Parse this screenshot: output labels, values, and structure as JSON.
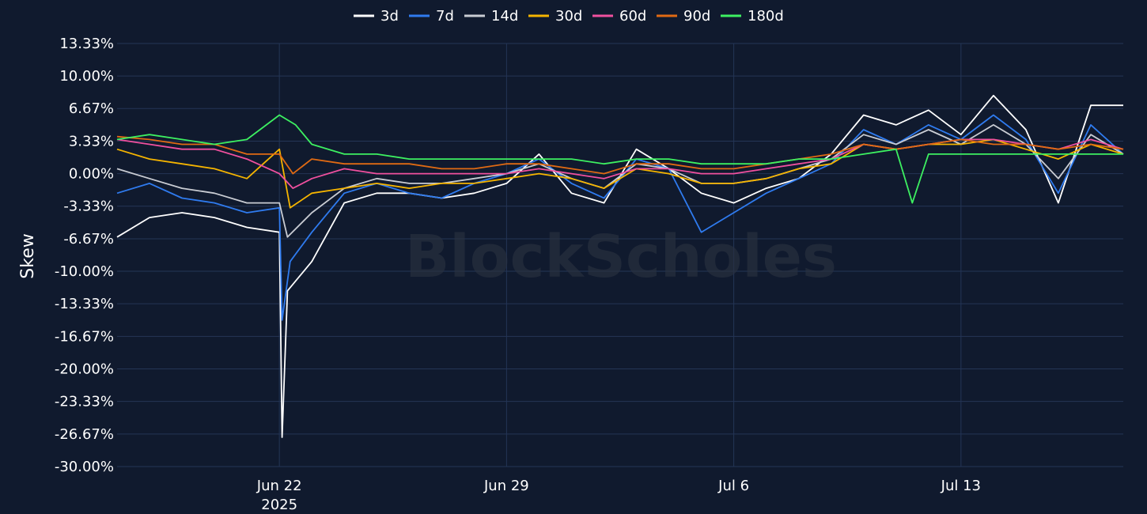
{
  "watermark": "BlockScholes",
  "chart_data": {
    "type": "line",
    "title": "",
    "xlabel": "",
    "ylabel": "Skew",
    "ylim": [
      -30,
      13.33
    ],
    "yticks": [
      13.33,
      10,
      6.67,
      3.33,
      0,
      -3.33,
      -6.67,
      -10,
      -13.33,
      -16.67,
      -20,
      -23.33,
      -26.67,
      -30
    ],
    "ytick_labels": [
      "13.33%",
      "10.00%",
      "6.67%",
      "3.33%",
      "0.00%",
      "-3.33%",
      "-6.67%",
      "-10.00%",
      "-13.33%",
      "-16.67%",
      "-20.00%",
      "-23.33%",
      "-26.67%",
      "-30.00%"
    ],
    "xlim": [
      "2025-06-17",
      "2025-07-18"
    ],
    "xticks": [
      {
        "date": "2025-06-22",
        "label": "Jun 22",
        "sublabel": "2025"
      },
      {
        "date": "2025-06-29",
        "label": "Jun 29",
        "sublabel": ""
      },
      {
        "date": "2025-07-06",
        "label": "Jul 6",
        "sublabel": ""
      },
      {
        "date": "2025-07-13",
        "label": "Jul 13",
        "sublabel": ""
      }
    ],
    "grid": true,
    "legend_position": "top-center",
    "series": [
      {
        "name": "3d",
        "color": "#ffffff",
        "points": [
          [
            "2025-06-17",
            -6.5
          ],
          [
            "2025-06-18",
            -4.5
          ],
          [
            "2025-06-19",
            -4.0
          ],
          [
            "2025-06-20",
            -4.5
          ],
          [
            "2025-06-21",
            -5.5
          ],
          [
            "2025-06-22",
            -6.0
          ],
          [
            "2025-06-22 02:00",
            -27.0
          ],
          [
            "2025-06-22 06:00",
            -12.0
          ],
          [
            "2025-06-23",
            -9.0
          ],
          [
            "2025-06-24",
            -3.0
          ],
          [
            "2025-06-25",
            -2.0
          ],
          [
            "2025-06-26",
            -2.0
          ],
          [
            "2025-06-27",
            -2.5
          ],
          [
            "2025-06-28",
            -2.0
          ],
          [
            "2025-06-29",
            -1.0
          ],
          [
            "2025-06-30",
            2.0
          ],
          [
            "2025-07-01",
            -2.0
          ],
          [
            "2025-07-02",
            -3.0
          ],
          [
            "2025-07-03",
            2.5
          ],
          [
            "2025-07-04",
            0.5
          ],
          [
            "2025-07-05",
            -2.0
          ],
          [
            "2025-07-06",
            -3.0
          ],
          [
            "2025-07-07",
            -1.5
          ],
          [
            "2025-07-08",
            -0.5
          ],
          [
            "2025-07-09",
            2.0
          ],
          [
            "2025-07-10",
            6.0
          ],
          [
            "2025-07-11",
            5.0
          ],
          [
            "2025-07-12",
            6.5
          ],
          [
            "2025-07-13",
            4.0
          ],
          [
            "2025-07-14",
            8.0
          ],
          [
            "2025-07-15",
            4.5
          ],
          [
            "2025-07-16",
            -3.0
          ],
          [
            "2025-07-17",
            7.0
          ],
          [
            "2025-07-18",
            7.0
          ]
        ]
      },
      {
        "name": "7d",
        "color": "#2f7bef",
        "points": [
          [
            "2025-06-17",
            -2.0
          ],
          [
            "2025-06-18",
            -1.0
          ],
          [
            "2025-06-19",
            -2.5
          ],
          [
            "2025-06-20",
            -3.0
          ],
          [
            "2025-06-21",
            -4.0
          ],
          [
            "2025-06-22",
            -3.5
          ],
          [
            "2025-06-22 02:00",
            -15.0
          ],
          [
            "2025-06-22 08:00",
            -9.0
          ],
          [
            "2025-06-23",
            -6.0
          ],
          [
            "2025-06-24",
            -2.0
          ],
          [
            "2025-06-25",
            -1.0
          ],
          [
            "2025-06-26",
            -2.0
          ],
          [
            "2025-06-27",
            -2.5
          ],
          [
            "2025-06-28",
            -1.0
          ],
          [
            "2025-06-29",
            0.0
          ],
          [
            "2025-06-30",
            1.5
          ],
          [
            "2025-07-01",
            -1.0
          ],
          [
            "2025-07-02",
            -2.5
          ],
          [
            "2025-07-03",
            1.5
          ],
          [
            "2025-07-04",
            0.5
          ],
          [
            "2025-07-05",
            -6.0
          ],
          [
            "2025-07-06",
            -4.0
          ],
          [
            "2025-07-07",
            -2.0
          ],
          [
            "2025-07-08",
            -0.5
          ],
          [
            "2025-07-09",
            1.0
          ],
          [
            "2025-07-10",
            4.5
          ],
          [
            "2025-07-11",
            3.0
          ],
          [
            "2025-07-12",
            5.0
          ],
          [
            "2025-07-13",
            3.5
          ],
          [
            "2025-07-14",
            6.0
          ],
          [
            "2025-07-15",
            3.5
          ],
          [
            "2025-07-16",
            -2.0
          ],
          [
            "2025-07-17",
            5.0
          ],
          [
            "2025-07-18",
            2.0
          ]
        ]
      },
      {
        "name": "14d",
        "color": "#c9ccd3",
        "points": [
          [
            "2025-06-17",
            0.5
          ],
          [
            "2025-06-18",
            -0.5
          ],
          [
            "2025-06-19",
            -1.5
          ],
          [
            "2025-06-20",
            -2.0
          ],
          [
            "2025-06-21",
            -3.0
          ],
          [
            "2025-06-22",
            -3.0
          ],
          [
            "2025-06-22 06:00",
            -6.5
          ],
          [
            "2025-06-23",
            -4.0
          ],
          [
            "2025-06-24",
            -1.5
          ],
          [
            "2025-06-25",
            -0.5
          ],
          [
            "2025-06-26",
            -1.0
          ],
          [
            "2025-06-27",
            -1.0
          ],
          [
            "2025-06-28",
            -0.5
          ],
          [
            "2025-06-29",
            0.0
          ],
          [
            "2025-06-30",
            1.0
          ],
          [
            "2025-07-01",
            -0.5
          ],
          [
            "2025-07-02",
            -1.5
          ],
          [
            "2025-07-03",
            1.0
          ],
          [
            "2025-07-04",
            0.5
          ],
          [
            "2025-07-05",
            -1.0
          ],
          [
            "2025-07-06",
            -1.0
          ],
          [
            "2025-07-07",
            -0.5
          ],
          [
            "2025-07-08",
            0.5
          ],
          [
            "2025-07-09",
            1.5
          ],
          [
            "2025-07-10",
            4.0
          ],
          [
            "2025-07-11",
            3.0
          ],
          [
            "2025-07-12",
            4.5
          ],
          [
            "2025-07-13",
            3.0
          ],
          [
            "2025-07-14",
            5.0
          ],
          [
            "2025-07-15",
            3.0
          ],
          [
            "2025-07-16",
            -0.5
          ],
          [
            "2025-07-17",
            4.0
          ],
          [
            "2025-07-18",
            2.0
          ]
        ]
      },
      {
        "name": "30d",
        "color": "#f5b400",
        "points": [
          [
            "2025-06-17",
            2.5
          ],
          [
            "2025-06-18",
            1.5
          ],
          [
            "2025-06-19",
            1.0
          ],
          [
            "2025-06-20",
            0.5
          ],
          [
            "2025-06-21",
            -0.5
          ],
          [
            "2025-06-22",
            2.5
          ],
          [
            "2025-06-22 08:00",
            -3.5
          ],
          [
            "2025-06-23",
            -2.0
          ],
          [
            "2025-06-24",
            -1.5
          ],
          [
            "2025-06-25",
            -1.0
          ],
          [
            "2025-06-26",
            -1.5
          ],
          [
            "2025-06-27",
            -1.0
          ],
          [
            "2025-06-28",
            -1.0
          ],
          [
            "2025-06-29",
            -0.5
          ],
          [
            "2025-06-30",
            0.0
          ],
          [
            "2025-07-01",
            -0.5
          ],
          [
            "2025-07-02",
            -1.5
          ],
          [
            "2025-07-03",
            0.5
          ],
          [
            "2025-07-04",
            0.0
          ],
          [
            "2025-07-05",
            -1.0
          ],
          [
            "2025-07-06",
            -1.0
          ],
          [
            "2025-07-07",
            -0.5
          ],
          [
            "2025-07-08",
            0.5
          ],
          [
            "2025-07-09",
            1.0
          ],
          [
            "2025-07-10",
            3.0
          ],
          [
            "2025-07-11",
            2.5
          ],
          [
            "2025-07-12",
            3.0
          ],
          [
            "2025-07-13",
            3.0
          ],
          [
            "2025-07-14",
            3.5
          ],
          [
            "2025-07-15",
            2.5
          ],
          [
            "2025-07-16",
            1.5
          ],
          [
            "2025-07-17",
            3.0
          ],
          [
            "2025-07-18",
            2.0
          ]
        ]
      },
      {
        "name": "60d",
        "color": "#f0509f",
        "points": [
          [
            "2025-06-17",
            3.5
          ],
          [
            "2025-06-18",
            3.0
          ],
          [
            "2025-06-19",
            2.5
          ],
          [
            "2025-06-20",
            2.5
          ],
          [
            "2025-06-21",
            1.5
          ],
          [
            "2025-06-22",
            0.0
          ],
          [
            "2025-06-22 10:00",
            -1.5
          ],
          [
            "2025-06-23",
            -0.5
          ],
          [
            "2025-06-24",
            0.5
          ],
          [
            "2025-06-25",
            0.0
          ],
          [
            "2025-06-26",
            0.0
          ],
          [
            "2025-06-27",
            0.0
          ],
          [
            "2025-06-28",
            0.0
          ],
          [
            "2025-06-29",
            0.0
          ],
          [
            "2025-06-30",
            0.5
          ],
          [
            "2025-07-01",
            0.0
          ],
          [
            "2025-07-02",
            -0.5
          ],
          [
            "2025-07-03",
            0.5
          ],
          [
            "2025-07-04",
            0.5
          ],
          [
            "2025-07-05",
            0.0
          ],
          [
            "2025-07-06",
            0.0
          ],
          [
            "2025-07-07",
            0.5
          ],
          [
            "2025-07-08",
            1.0
          ],
          [
            "2025-07-09",
            1.5
          ],
          [
            "2025-07-10",
            3.0
          ],
          [
            "2025-07-11",
            2.5
          ],
          [
            "2025-07-12",
            3.0
          ],
          [
            "2025-07-13",
            3.5
          ],
          [
            "2025-07-14",
            3.5
          ],
          [
            "2025-07-15",
            3.0
          ],
          [
            "2025-07-16",
            2.5
          ],
          [
            "2025-07-17",
            3.5
          ],
          [
            "2025-07-18",
            2.5
          ]
        ]
      },
      {
        "name": "90d",
        "color": "#e06a13",
        "points": [
          [
            "2025-06-17",
            3.8
          ],
          [
            "2025-06-18",
            3.5
          ],
          [
            "2025-06-19",
            3.0
          ],
          [
            "2025-06-20",
            3.0
          ],
          [
            "2025-06-21",
            2.0
          ],
          [
            "2025-06-22",
            2.0
          ],
          [
            "2025-06-22 10:00",
            0.0
          ],
          [
            "2025-06-23",
            1.5
          ],
          [
            "2025-06-24",
            1.0
          ],
          [
            "2025-06-25",
            1.0
          ],
          [
            "2025-06-26",
            1.0
          ],
          [
            "2025-06-27",
            0.5
          ],
          [
            "2025-06-28",
            0.5
          ],
          [
            "2025-06-29",
            1.0
          ],
          [
            "2025-06-30",
            1.0
          ],
          [
            "2025-07-01",
            0.5
          ],
          [
            "2025-07-02",
            0.0
          ],
          [
            "2025-07-03",
            1.0
          ],
          [
            "2025-07-04",
            1.0
          ],
          [
            "2025-07-05",
            0.5
          ],
          [
            "2025-07-06",
            0.5
          ],
          [
            "2025-07-07",
            1.0
          ],
          [
            "2025-07-08",
            1.5
          ],
          [
            "2025-07-09",
            2.0
          ],
          [
            "2025-07-10",
            3.0
          ],
          [
            "2025-07-11",
            2.5
          ],
          [
            "2025-07-12",
            3.0
          ],
          [
            "2025-07-13",
            3.5
          ],
          [
            "2025-07-14",
            3.0
          ],
          [
            "2025-07-15",
            3.0
          ],
          [
            "2025-07-16",
            2.5
          ],
          [
            "2025-07-17",
            3.0
          ],
          [
            "2025-07-18",
            2.5
          ]
        ]
      },
      {
        "name": "180d",
        "color": "#3df061",
        "points": [
          [
            "2025-06-17",
            3.5
          ],
          [
            "2025-06-18",
            4.0
          ],
          [
            "2025-06-19",
            3.5
          ],
          [
            "2025-06-20",
            3.0
          ],
          [
            "2025-06-21",
            3.5
          ],
          [
            "2025-06-22",
            6.0
          ],
          [
            "2025-06-22 12:00",
            5.0
          ],
          [
            "2025-06-23",
            3.0
          ],
          [
            "2025-06-24",
            2.0
          ],
          [
            "2025-06-25",
            2.0
          ],
          [
            "2025-06-26",
            1.5
          ],
          [
            "2025-06-27",
            1.5
          ],
          [
            "2025-06-28",
            1.5
          ],
          [
            "2025-06-29",
            1.5
          ],
          [
            "2025-06-30",
            1.5
          ],
          [
            "2025-07-01",
            1.5
          ],
          [
            "2025-07-02",
            1.0
          ],
          [
            "2025-07-03",
            1.5
          ],
          [
            "2025-07-04",
            1.5
          ],
          [
            "2025-07-05",
            1.0
          ],
          [
            "2025-07-06",
            1.0
          ],
          [
            "2025-07-07",
            1.0
          ],
          [
            "2025-07-08",
            1.5
          ],
          [
            "2025-07-09",
            1.5
          ],
          [
            "2025-07-10",
            2.0
          ],
          [
            "2025-07-11",
            2.5
          ],
          [
            "2025-07-11 12:00",
            -3.0
          ],
          [
            "2025-07-12",
            2.0
          ],
          [
            "2025-07-13",
            2.0
          ],
          [
            "2025-07-14",
            2.0
          ],
          [
            "2025-07-15",
            2.0
          ],
          [
            "2025-07-16",
            2.0
          ],
          [
            "2025-07-17",
            2.0
          ],
          [
            "2025-07-18",
            2.0
          ]
        ]
      }
    ]
  }
}
